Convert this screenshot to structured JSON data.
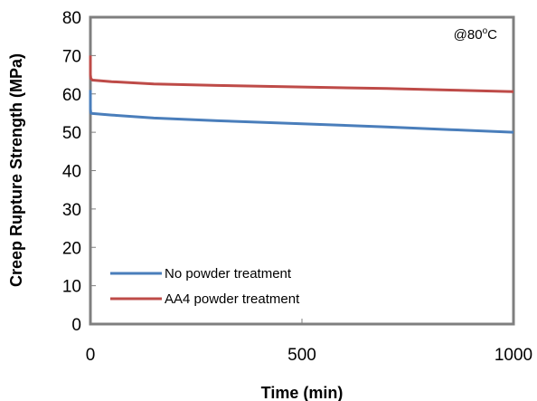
{
  "chart_data": {
    "type": "line",
    "title": "",
    "xlabel": "Time (min)",
    "ylabel": "Creep Rupture Strength  (MPa)",
    "xlim": [
      0,
      1000
    ],
    "ylim": [
      0,
      80
    ],
    "x_ticks": [
      0,
      500,
      1000
    ],
    "y_ticks": [
      0,
      10,
      20,
      30,
      40,
      50,
      60,
      70,
      80
    ],
    "grid": false,
    "legend_position": "bottom-left",
    "annotation": {
      "base": "@80",
      "sup": "o",
      "unit": "C"
    },
    "series": [
      {
        "name": "No powder treatment",
        "color": "#4A7EBB",
        "x": [
          0,
          0,
          1,
          5,
          50,
          150,
          300,
          500,
          700,
          850,
          1000
        ],
        "y": [
          61,
          56,
          55,
          54.9,
          54.5,
          53.7,
          53.0,
          52.2,
          51.4,
          50.7,
          50.0
        ]
      },
      {
        "name": "AA4 powder treatment",
        "color": "#BE4B48",
        "x": [
          0,
          0,
          1,
          5,
          50,
          150,
          300,
          500,
          700,
          850,
          1000
        ],
        "y": [
          70,
          65,
          64,
          63.6,
          63.2,
          62.6,
          62.2,
          61.8,
          61.4,
          61.0,
          60.6
        ]
      }
    ]
  }
}
